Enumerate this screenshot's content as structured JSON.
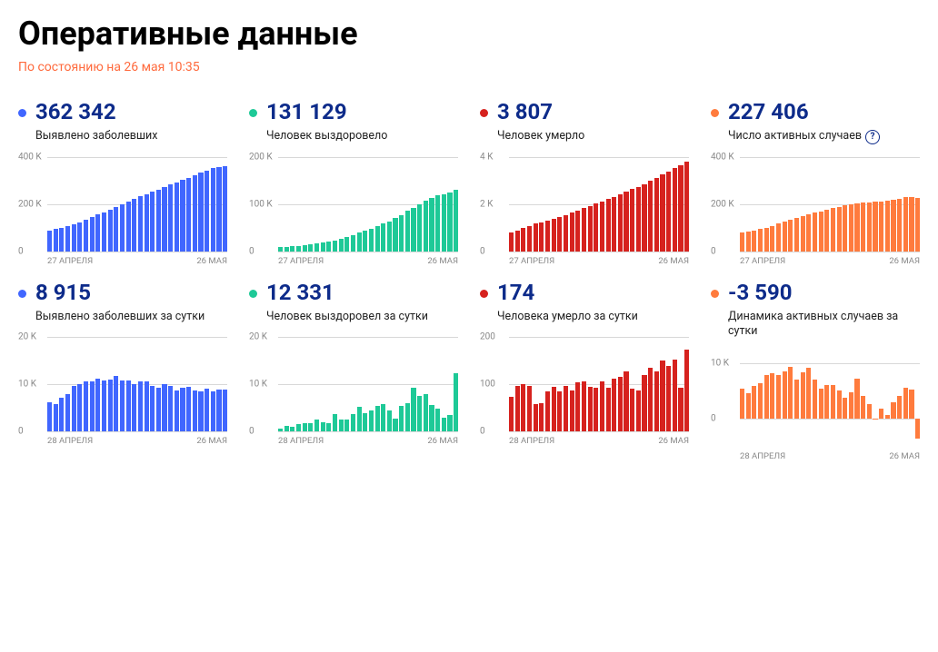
{
  "title": "Оперативные данные",
  "timestamp": "По состоянию на 26 мая 10:35",
  "colors": {
    "blue": "#4066ff",
    "green": "#1ec997",
    "red": "#d6221e",
    "orange": "#ff7b3d",
    "value": "#0d2b8a",
    "grid": "#d8d8d8",
    "tick": "#888888"
  },
  "cards": [
    {
      "id": "confirmed-total",
      "dot_color": "#4066ff",
      "value": "362 342",
      "label": "Выявлено заболевших",
      "chart": {
        "type": "bar",
        "bar_color": "#4066ff",
        "x_start": "27 АПРЕЛЯ",
        "x_end": "26 МАЯ",
        "yticks": [
          {
            "v": 0,
            "t": "0"
          },
          {
            "v": 200,
            "t": "200 K"
          },
          {
            "v": 400,
            "t": "400 K"
          }
        ],
        "ylim": [
          0,
          400
        ],
        "values": [
          87,
          93,
          99,
          106,
          114,
          121,
          134,
          145,
          155,
          165,
          177,
          187,
          198,
          209,
          221,
          232,
          242,
          252,
          262,
          272,
          282,
          292,
          302,
          312,
          322,
          332,
          342,
          352,
          357,
          362
        ]
      }
    },
    {
      "id": "recovered-total",
      "dot_color": "#1ec997",
      "value": "131 129",
      "label": "Человек выздоровело",
      "chart": {
        "type": "bar",
        "bar_color": "#1ec997",
        "x_start": "27 АПРЕЛЯ",
        "x_end": "26 МАЯ",
        "yticks": [
          {
            "v": 0,
            "t": "0"
          },
          {
            "v": 100,
            "t": "100 K"
          },
          {
            "v": 200,
            "t": "200 K"
          }
        ],
        "ylim": [
          0,
          200
        ],
        "values": [
          8,
          9,
          10,
          11,
          13,
          15,
          17,
          19,
          21,
          23,
          27,
          31,
          34,
          39,
          43,
          48,
          53,
          58,
          63,
          70,
          76,
          85,
          92,
          99,
          107,
          113,
          118,
          121,
          125,
          131
        ]
      }
    },
    {
      "id": "deaths-total",
      "dot_color": "#d6221e",
      "value": "3 807",
      "label": "Человек умерло",
      "chart": {
        "type": "bar",
        "bar_color": "#d6221e",
        "x_start": "27 АПРЕЛЯ",
        "x_end": "26 МАЯ",
        "yticks": [
          {
            "v": 0,
            "t": "0"
          },
          {
            "v": 2,
            "t": "2 K"
          },
          {
            "v": 4,
            "t": "4 K"
          }
        ],
        "ylim": [
          0,
          4
        ],
        "values": [
          0.79,
          0.87,
          0.97,
          1.07,
          1.17,
          1.22,
          1.28,
          1.36,
          1.45,
          1.54,
          1.63,
          1.72,
          1.83,
          1.92,
          2.01,
          2.12,
          2.21,
          2.31,
          2.42,
          2.54,
          2.63,
          2.72,
          2.84,
          2.97,
          3.1,
          3.25,
          3.39,
          3.54,
          3.63,
          3.81
        ]
      }
    },
    {
      "id": "active-total",
      "dot_color": "#ff7b3d",
      "value": "227 406",
      "label": "Число активных случаев",
      "help": true,
      "chart": {
        "type": "bar",
        "bar_color": "#ff7b3d",
        "x_start": "27 АПРЕЛЯ",
        "x_end": "26 МАЯ",
        "yticks": [
          {
            "v": 0,
            "t": "0"
          },
          {
            "v": 200,
            "t": "200 K"
          },
          {
            "v": 400,
            "t": "400 K"
          }
        ],
        "ylim": [
          0,
          400
        ],
        "values": [
          78,
          83,
          88,
          94,
          100,
          105,
          116,
          125,
          133,
          142,
          149,
          155,
          163,
          169,
          177,
          182,
          188,
          193,
          198,
          201,
          205,
          207,
          210,
          212,
          214,
          218,
          223,
          230,
          231,
          227
        ]
      }
    },
    {
      "id": "confirmed-daily",
      "dot_color": "#4066ff",
      "value": "8 915",
      "label": "Выявлено заболевших за сутки",
      "chart": {
        "type": "bar",
        "bar_color": "#4066ff",
        "x_start": "28 АПРЕЛЯ",
        "x_end": "26 МАЯ",
        "yticks": [
          {
            "v": 0,
            "t": "0"
          },
          {
            "v": 10,
            "t": "10 K"
          },
          {
            "v": 20,
            "t": "20 K"
          }
        ],
        "ylim": [
          0,
          20
        ],
        "values": [
          6.2,
          5.8,
          7.1,
          7.9,
          9.6,
          10.1,
          10.6,
          10.6,
          11.2,
          10.8,
          11.0,
          11.7,
          10.9,
          10.8,
          10.0,
          10.6,
          10.6,
          9.7,
          9.2,
          10.0,
          9.7,
          8.8,
          9.2,
          9.4,
          8.7,
          8.6,
          9.0,
          8.6,
          8.9,
          8.9
        ]
      }
    },
    {
      "id": "recovered-daily",
      "dot_color": "#1ec997",
      "value": "12 331",
      "label": "Человек выздоровел за сутки",
      "chart": {
        "type": "bar",
        "bar_color": "#1ec997",
        "x_start": "28 АПРЕЛЯ",
        "x_end": "26 МАЯ",
        "yticks": [
          {
            "v": 0,
            "t": "0"
          },
          {
            "v": 10,
            "t": "10 K"
          },
          {
            "v": 20,
            "t": "20 K"
          }
        ],
        "ylim": [
          0,
          20
        ],
        "values": [
          0.7,
          1.2,
          1.1,
          1.5,
          1.7,
          1.8,
          2.6,
          2.0,
          1.8,
          3.7,
          2.5,
          2.5,
          3.7,
          5.3,
          3.9,
          4.4,
          5.5,
          5.9,
          4.4,
          2.7,
          5.5,
          6.1,
          9.3,
          7.5,
          8.0,
          5.6,
          4.9,
          2.9,
          3.5,
          12.3
        ]
      }
    },
    {
      "id": "deaths-daily",
      "dot_color": "#d6221e",
      "value": "174",
      "label": "Человека умерло за сутки",
      "chart": {
        "type": "bar",
        "bar_color": "#d6221e",
        "x_start": "28 АПРЕЛЯ",
        "x_end": "26 МАЯ",
        "yticks": [
          {
            "v": 0,
            "t": "0"
          },
          {
            "v": 100,
            "t": "100"
          },
          {
            "v": 200,
            "t": "200"
          }
        ],
        "ylim": [
          0,
          200
        ],
        "values": [
          73,
          96,
          101,
          96,
          58,
          60,
          86,
          95,
          86,
          96,
          88,
          104,
          107,
          94,
          93,
          107,
          93,
          113,
          115,
          127,
          91,
          88,
          119,
          135,
          127,
          150,
          139,
          153,
          92,
          174
        ]
      }
    },
    {
      "id": "active-daily",
      "dot_color": "#ff7b3d",
      "value": "-3 590",
      "label": "Динамика активных случаев за сутки",
      "chart": {
        "type": "bar",
        "bar_color": "#ff7b3d",
        "x_start": "28 АПРЕЛЯ",
        "x_end": "26 МАЯ",
        "yticks": [
          {
            "v": 0,
            "t": "0"
          },
          {
            "v": 10,
            "t": "10 K"
          }
        ],
        "ylim": [
          -5,
          12
        ],
        "baseline": 0,
        "values": [
          5.4,
          4.5,
          5.9,
          6.3,
          7.8,
          8.2,
          7.9,
          8.5,
          9.3,
          7.0,
          8.4,
          9.1,
          7.1,
          5.4,
          6.0,
          6.1,
          5.0,
          3.7,
          4.7,
          7.2,
          4.1,
          2.6,
          -0.2,
          1.8,
          0.6,
          2.9,
          4.0,
          5.6,
          5.3,
          -3.6
        ]
      }
    }
  ]
}
